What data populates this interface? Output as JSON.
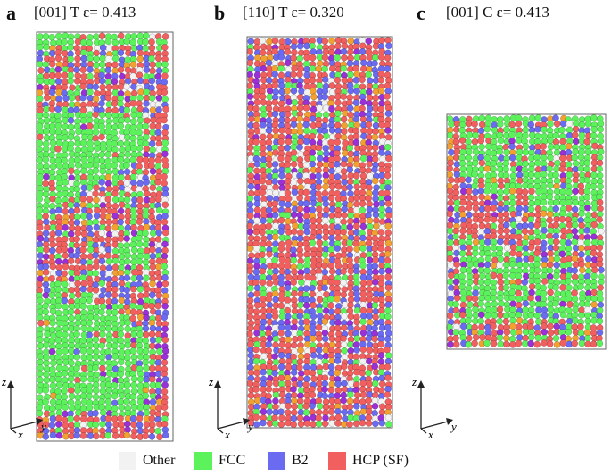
{
  "panels": [
    {
      "letter": "a",
      "title": "[001] T  ε= 0.413"
    },
    {
      "letter": "b",
      "title": "[110] T  ε= 0.320"
    },
    {
      "letter": "c",
      "title": "[001] C  ε= 0.413"
    }
  ],
  "axes": {
    "z": "z",
    "x": "x",
    "y": "y"
  },
  "legend": [
    {
      "label": "Other",
      "color": "#f2f2f2"
    },
    {
      "label": "FCC",
      "color": "#5cf25c"
    },
    {
      "label": "B2",
      "color": "#6b6bf2"
    },
    {
      "label": "HCP (SF)",
      "color": "#f25f5f"
    }
  ],
  "colors": {
    "fcc": "#5cf25c",
    "b2": "#6b6bf2",
    "hcp": "#f25f5f",
    "other": "#f2f2f2",
    "orange": "#f2a030",
    "purple": "#9a30d8"
  }
}
